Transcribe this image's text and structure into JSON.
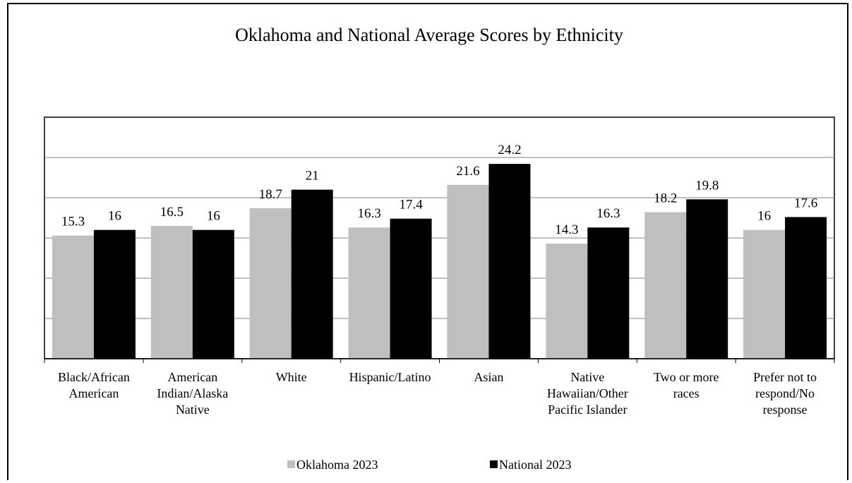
{
  "chart_data": {
    "type": "bar",
    "title": "Oklahoma and National Average Scores by Ethnicity",
    "xlabel": "",
    "ylabel": "",
    "ylim": [
      0,
      30
    ],
    "grid": true,
    "legend_position": "bottom",
    "categories": [
      [
        "Black/African",
        "American"
      ],
      [
        "American",
        "Indian/Alaska",
        "Native"
      ],
      [
        "White"
      ],
      [
        "Hispanic/Latino"
      ],
      [
        "Asian"
      ],
      [
        "Native",
        "Hawaiian/Other",
        "Pacific Islander"
      ],
      [
        "Two or more",
        "races"
      ],
      [
        "Prefer not to",
        "respond/No",
        "response"
      ]
    ],
    "series": [
      {
        "name": "Oklahoma 2023",
        "color": "#bfbfbf",
        "values": [
          15.3,
          16.5,
          18.7,
          16.3,
          21.6,
          14.3,
          18.2,
          16
        ]
      },
      {
        "name": "National 2023",
        "color": "#000000",
        "values": [
          16,
          16,
          21,
          17.4,
          24.2,
          16.3,
          19.8,
          17.6
        ]
      }
    ]
  }
}
